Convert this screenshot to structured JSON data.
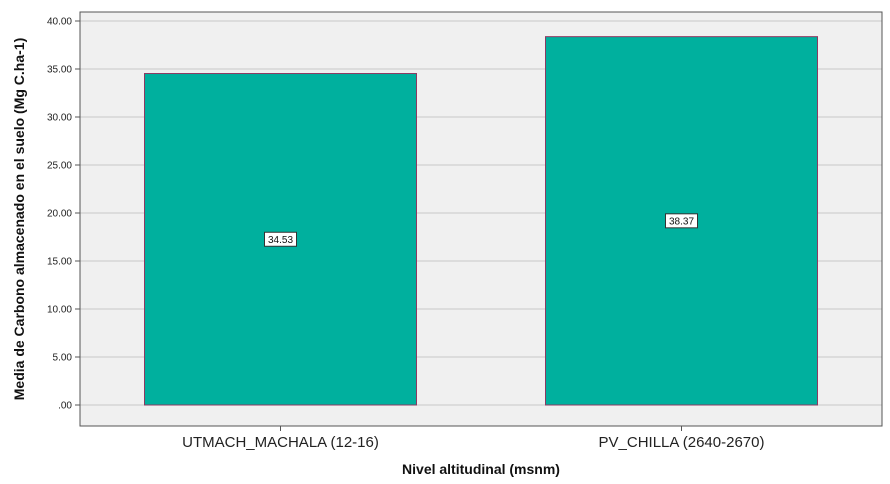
{
  "chart_data": {
    "type": "bar",
    "categories": [
      "UTMACH_MACHALA (12-16)",
      "PV_CHILLA (2640-2670)"
    ],
    "values": [
      34.53,
      38.37
    ],
    "data_labels": [
      "34.53",
      "38.37"
    ],
    "xlabel": "Nivel altitudinal (msnm)",
    "ylabel": "Media de Carbono almacenado en el suelo (Mg C.ha-1)",
    "ylim": [
      0,
      40
    ],
    "yticks": [
      ".00",
      "5.00",
      "10.00",
      "15.00",
      "20.00",
      "25.00",
      "30.00",
      "35.00",
      "40.00"
    ],
    "grid": true,
    "legend": "none",
    "colors": {
      "bar_fill": "#00B09E",
      "bar_stroke": "#8B3A62",
      "plot_background": "#F0F0F0",
      "gridline": "#C8C8C8",
      "frame": "#555555"
    }
  }
}
